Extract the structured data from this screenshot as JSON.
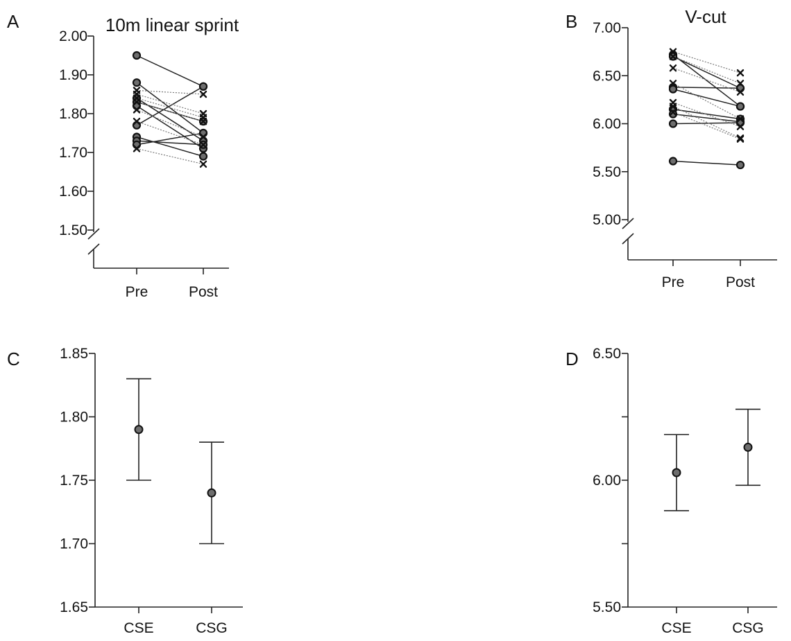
{
  "chart_data": [
    {
      "panel": "A",
      "type": "line",
      "title": "10m linear sprint",
      "categories": [
        "Pre",
        "Post"
      ],
      "ylim": [
        1.5,
        2.0
      ],
      "yticks": [
        "1.50",
        "1.60",
        "1.70",
        "1.80",
        "1.90",
        "2.00"
      ],
      "axis_break": true,
      "series": [
        {
          "marker": "circle",
          "values": [
            1.95,
            1.87
          ]
        },
        {
          "marker": "circle",
          "values": [
            1.88,
            1.75
          ]
        },
        {
          "marker": "circle",
          "values": [
            1.84,
            1.73
          ]
        },
        {
          "marker": "circle",
          "values": [
            1.83,
            1.78
          ]
        },
        {
          "marker": "circle",
          "values": [
            1.82,
            1.71
          ]
        },
        {
          "marker": "circle",
          "values": [
            1.77,
            1.87
          ]
        },
        {
          "marker": "circle",
          "values": [
            1.74,
            1.69
          ]
        },
        {
          "marker": "circle",
          "values": [
            1.73,
            1.72
          ]
        },
        {
          "marker": "circle",
          "values": [
            1.72,
            1.75
          ]
        },
        {
          "marker": "cross",
          "values": [
            1.86,
            1.85
          ]
        },
        {
          "marker": "cross",
          "values": [
            1.85,
            1.8
          ]
        },
        {
          "marker": "cross",
          "values": [
            1.84,
            1.79
          ]
        },
        {
          "marker": "cross",
          "values": [
            1.83,
            1.78
          ]
        },
        {
          "marker": "cross",
          "values": [
            1.81,
            1.74
          ]
        },
        {
          "marker": "cross",
          "values": [
            1.78,
            1.72
          ]
        },
        {
          "marker": "cross",
          "values": [
            1.71,
            1.67
          ]
        }
      ]
    },
    {
      "panel": "B",
      "type": "line",
      "title": "V-cut",
      "categories": [
        "Pre",
        "Post"
      ],
      "ylim": [
        5.0,
        7.0
      ],
      "yticks": [
        "5.00",
        "5.50",
        "6.00",
        "6.50",
        "7.00"
      ],
      "axis_break": true,
      "series": [
        {
          "marker": "circle",
          "values": [
            6.72,
            6.18
          ]
        },
        {
          "marker": "circle",
          "values": [
            6.7,
            6.37
          ]
        },
        {
          "marker": "circle",
          "values": [
            6.38,
            6.37
          ]
        },
        {
          "marker": "circle",
          "values": [
            6.36,
            6.18
          ]
        },
        {
          "marker": "circle",
          "values": [
            6.15,
            6.05
          ]
        },
        {
          "marker": "circle",
          "values": [
            6.1,
            6.02
          ]
        },
        {
          "marker": "circle",
          "values": [
            6.0,
            6.01
          ]
        },
        {
          "marker": "circle",
          "values": [
            5.61,
            5.57
          ]
        },
        {
          "marker": "cross",
          "values": [
            6.75,
            6.53
          ]
        },
        {
          "marker": "cross",
          "values": [
            6.7,
            6.42
          ]
        },
        {
          "marker": "cross",
          "values": [
            6.58,
            6.33
          ]
        },
        {
          "marker": "cross",
          "values": [
            6.42,
            6.05
          ]
        },
        {
          "marker": "cross",
          "values": [
            6.22,
            5.97
          ]
        },
        {
          "marker": "cross",
          "values": [
            6.18,
            5.85
          ]
        },
        {
          "marker": "cross",
          "values": [
            6.12,
            5.84
          ]
        }
      ]
    },
    {
      "panel": "C",
      "type": "scatter",
      "categories": [
        "CSE",
        "CSG"
      ],
      "ylim": [
        1.65,
        1.85
      ],
      "yticks": [
        "1.65",
        "1.70",
        "1.75",
        "1.80",
        "1.85"
      ],
      "points": [
        {
          "category": "CSE",
          "mean": 1.79,
          "lower": 1.75,
          "upper": 1.83
        },
        {
          "category": "CSG",
          "mean": 1.74,
          "lower": 1.7,
          "upper": 1.78
        }
      ]
    },
    {
      "panel": "D",
      "type": "scatter",
      "categories": [
        "CSE",
        "CSG"
      ],
      "ylim": [
        5.5,
        6.5
      ],
      "yticks": [
        "5.50",
        "",
        "6.00",
        "",
        "6.50"
      ],
      "points": [
        {
          "category": "CSE",
          "mean": 6.03,
          "lower": 5.88,
          "upper": 6.18
        },
        {
          "category": "CSG",
          "mean": 6.13,
          "lower": 5.98,
          "upper": 6.28
        }
      ]
    }
  ]
}
